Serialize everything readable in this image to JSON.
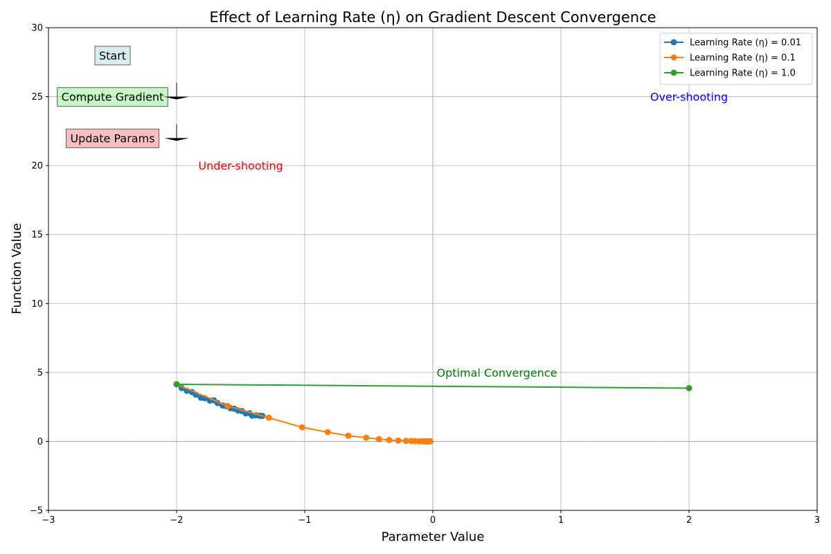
{
  "chart_data": {
    "type": "line",
    "title": "Effect of Learning Rate (η) on Gradient Descent Convergence",
    "xlabel": "Parameter Value",
    "ylabel": "Function Value",
    "xlim": [
      -3,
      3
    ],
    "ylim": [
      -5,
      30
    ],
    "xticks": [
      -3,
      -2,
      -1,
      0,
      1,
      2,
      3
    ],
    "yticks": [
      -5,
      0,
      5,
      10,
      15,
      20,
      25,
      30
    ],
    "grid": true,
    "legend_position": "top-right",
    "series": [
      {
        "name": "Learning Rate (η) = 0.01",
        "color": "#1f77b4",
        "x": [
          -2.0,
          -1.96,
          -1.92,
          -1.88,
          -1.85,
          -1.81,
          -1.78,
          -1.74,
          -1.71,
          -1.68,
          -1.64,
          -1.61,
          -1.58,
          -1.55,
          -1.52,
          -1.49,
          -1.46,
          -1.43,
          -1.41,
          -1.38,
          -1.35,
          -1.33
        ],
        "y": [
          4.14,
          3.87,
          3.67,
          3.58,
          3.39,
          3.17,
          3.13,
          2.96,
          2.98,
          2.78,
          2.6,
          2.55,
          2.41,
          2.37,
          2.24,
          2.2,
          2.03,
          2.04,
          1.87,
          1.89,
          1.86,
          1.85
        ]
      },
      {
        "name": "Learning Rate (η) = 0.1",
        "color": "#ff7f0e",
        "x": [
          -2.0,
          -1.6,
          -1.28,
          -1.02,
          -0.82,
          -0.66,
          -0.52,
          -0.42,
          -0.34,
          -0.27,
          -0.21,
          -0.17,
          -0.14,
          -0.11,
          -0.09,
          -0.07,
          -0.06,
          -0.05,
          -0.04,
          -0.03,
          -0.02
        ],
        "y": [
          4.14,
          2.56,
          1.72,
          1.02,
          0.67,
          0.41,
          0.27,
          0.16,
          0.1,
          0.06,
          0.04,
          0.03,
          0.02,
          0.01,
          0.01,
          0.01,
          0.0,
          0.0,
          0.0,
          0.0,
          0.0
        ]
      },
      {
        "name": "Learning Rate (η) = 1.0",
        "color": "#2ca02c",
        "x": [
          -2.0,
          2.0
        ],
        "y": [
          4.14,
          3.86
        ]
      }
    ],
    "annotations": [
      {
        "text": "Start",
        "x": -2.5,
        "y": 28,
        "style": "box",
        "box_color": "#add8e6"
      },
      {
        "text": "Compute Gradient",
        "x": -2.5,
        "y": 25,
        "style": "box",
        "box_color": "#90ee90"
      },
      {
        "text": "Update Params",
        "x": -2.5,
        "y": 22,
        "style": "box",
        "box_color": "#f08080"
      },
      {
        "text": "Under-shooting",
        "x": -1.5,
        "y": 20,
        "style": "text",
        "color": "#ff0000"
      },
      {
        "text": "Optimal Convergence",
        "x": 0.5,
        "y": 5,
        "style": "text",
        "color": "#008000"
      },
      {
        "text": "Over-shooting",
        "x": 2.0,
        "y": 25,
        "style": "text",
        "color": "#0000ff"
      }
    ]
  }
}
